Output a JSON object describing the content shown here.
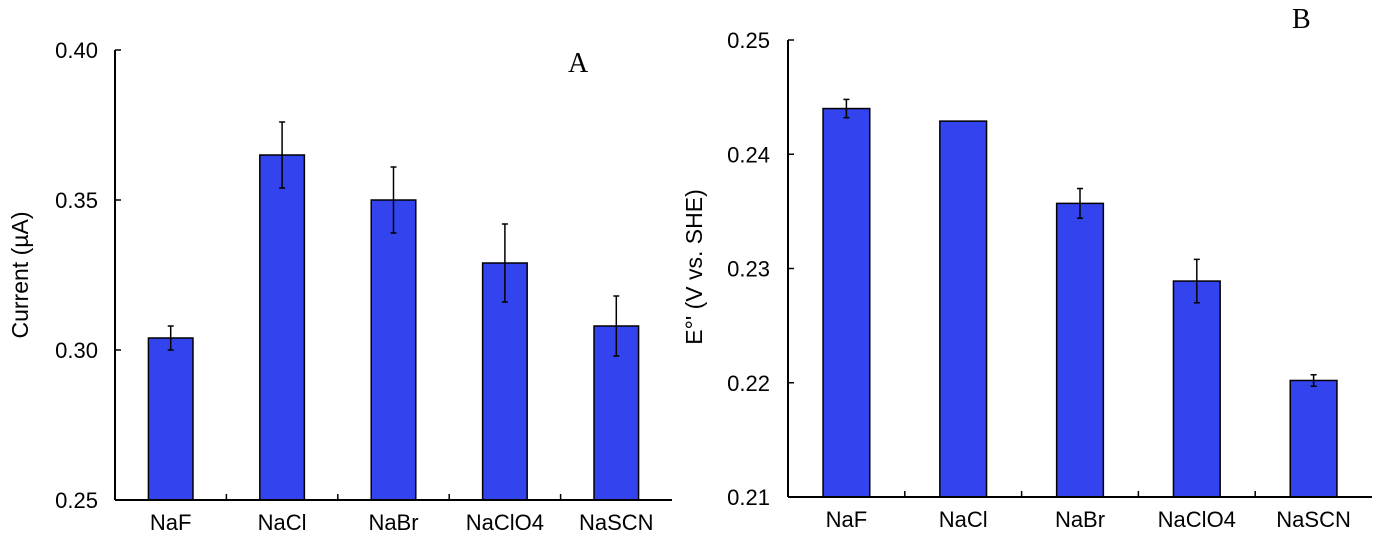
{
  "chart_data": [
    {
      "type": "bar",
      "panel_label": "A",
      "title": "",
      "xlabel": "",
      "ylabel": "Current (µA)",
      "ylim": [
        0.25,
        0.4
      ],
      "yticks": [
        "0.25",
        "0.30",
        "0.35",
        "0.40"
      ],
      "categories": [
        "NaF",
        "NaCl",
        "NaBr",
        "NaClO4",
        "NaSCN"
      ],
      "values": [
        0.304,
        0.365,
        0.35,
        0.329,
        0.308
      ],
      "error": [
        0.004,
        0.011,
        0.011,
        0.013,
        0.01
      ],
      "grid": false,
      "bar_color": "#3344ee"
    },
    {
      "type": "bar",
      "panel_label": "B",
      "title": "",
      "xlabel": "",
      "ylabel": "E°' (V vs. SHE)",
      "ylim": [
        0.21,
        0.25
      ],
      "yticks": [
        "0.21",
        "0.22",
        "0.23",
        "0.24",
        "0.25"
      ],
      "categories": [
        "NaF",
        "NaCl",
        "NaBr",
        "NaClO4",
        "NaSCN"
      ],
      "values": [
        0.244,
        0.2429,
        0.2357,
        0.2289,
        0.2202
      ],
      "error": [
        0.0008,
        0,
        0.0013,
        0.0019,
        0.0005
      ],
      "grid": false,
      "bar_color": "#3344ee"
    }
  ]
}
